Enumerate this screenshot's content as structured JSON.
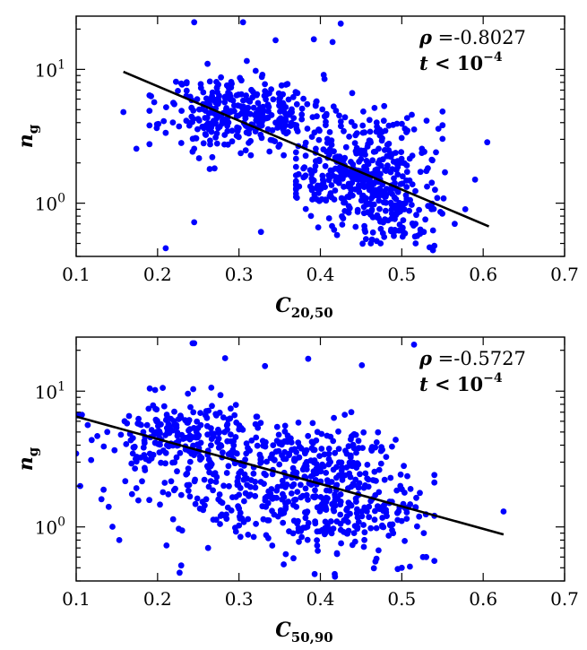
{
  "chart_data": [
    {
      "type": "scatter",
      "xlabel": {
        "main": "C",
        "sub": "20,50"
      },
      "ylabel": {
        "main": "n",
        "sub": "g"
      },
      "xlim": [
        0.1,
        0.7
      ],
      "ylim": [
        0.4,
        25
      ],
      "yscale": "log",
      "xticks": [
        "0.1",
        "0.2",
        "0.3",
        "0.4",
        "0.5",
        "0.6",
        "0.7"
      ],
      "yticks": [
        {
          "value": 1,
          "base": "10",
          "exp": "0"
        },
        {
          "value": 10,
          "base": "10",
          "exp": "1"
        }
      ],
      "annotation": {
        "rho_symbol": "ρ",
        "rho_text": " =-0.8027",
        "t_symbol": "t",
        "t_text": " < 10",
        "t_exp": "−4"
      },
      "marker_color": "#0000ff",
      "fit_color": "#000000",
      "fit_line": {
        "x": [
          0.158,
          0.607
        ],
        "y": [
          9.6,
          0.67
        ]
      },
      "clusters": [
        {
          "cx": 0.3,
          "cy": 4.8,
          "sx": 0.045,
          "sy": 0.14,
          "n": 320,
          "seed": 11,
          "xmin": 0.19,
          "xmax": 0.43
        },
        {
          "cx": 0.44,
          "cy": 1.5,
          "sx": 0.04,
          "sy": 0.14,
          "n": 300,
          "seed": 23,
          "xmin": 0.37,
          "xmax": 0.55
        },
        {
          "cx": 0.45,
          "cy": 3.4,
          "sx": 0.05,
          "sy": 0.12,
          "n": 90,
          "seed": 37,
          "xmin": 0.35,
          "xmax": 0.55
        },
        {
          "cx": 0.5,
          "cy": 0.8,
          "sx": 0.03,
          "sy": 0.1,
          "n": 90,
          "seed": 41,
          "xmin": 0.43,
          "xmax": 0.57
        }
      ],
      "outliers": [
        [
          0.245,
          22.5
        ],
        [
          0.305,
          22.5
        ],
        [
          0.345,
          16.5
        ],
        [
          0.392,
          16.8
        ],
        [
          0.415,
          16
        ],
        [
          0.425,
          22
        ],
        [
          0.158,
          4.8
        ],
        [
          0.174,
          2.55
        ],
        [
          0.21,
          0.46
        ],
        [
          0.245,
          0.72
        ],
        [
          0.327,
          0.61
        ],
        [
          0.245,
          2.55
        ],
        [
          0.264,
          1.8
        ],
        [
          0.542,
          2.4
        ],
        [
          0.565,
          0.7
        ],
        [
          0.59,
          1.5
        ],
        [
          0.605,
          2.85
        ],
        [
          0.545,
          3.6
        ],
        [
          0.578,
          0.9
        ],
        [
          0.517,
          0.5
        ],
        [
          0.54,
          0.48
        ],
        [
          0.474,
          0.5
        ],
        [
          0.456,
          0.54
        ],
        [
          0.531,
          1.33
        ],
        [
          0.553,
          1.7
        ],
        [
          0.462,
          0.5
        ],
        [
          0.489,
          0.61
        ],
        [
          0.527,
          0.61
        ],
        [
          0.225,
          6.9
        ],
        [
          0.192,
          6.3
        ]
      ]
    },
    {
      "type": "scatter",
      "xlabel": {
        "main": "C",
        "sub": "50,90"
      },
      "ylabel": {
        "main": "n",
        "sub": "g"
      },
      "xlim": [
        0.1,
        0.7
      ],
      "ylim": [
        0.4,
        25
      ],
      "yscale": "log",
      "xticks": [
        "0.1",
        "0.2",
        "0.3",
        "0.4",
        "0.5",
        "0.6",
        "0.7"
      ],
      "yticks": [
        {
          "value": 1,
          "base": "10",
          "exp": "0"
        },
        {
          "value": 10,
          "base": "10",
          "exp": "1"
        }
      ],
      "annotation": {
        "rho_symbol": "ρ",
        "rho_text": " =-0.5727",
        "t_symbol": "t",
        "t_text": " < 10",
        "t_exp": "−4"
      },
      "marker_color": "#0000ff",
      "fit_color": "#000000",
      "fit_line": {
        "x": [
          0.1,
          0.625
        ],
        "y": [
          6.5,
          0.88
        ]
      },
      "clusters": [
        {
          "cx": 0.24,
          "cy": 4.2,
          "sx": 0.055,
          "sy": 0.16,
          "n": 260,
          "seed": 53,
          "xmin": 0.1,
          "xmax": 0.42
        },
        {
          "cx": 0.42,
          "cy": 1.3,
          "sx": 0.05,
          "sy": 0.17,
          "n": 260,
          "seed": 67,
          "xmin": 0.3,
          "xmax": 0.54
        },
        {
          "cx": 0.4,
          "cy": 3.2,
          "sx": 0.055,
          "sy": 0.13,
          "n": 160,
          "seed": 71,
          "xmin": 0.3,
          "xmax": 0.53
        },
        {
          "cx": 0.3,
          "cy": 1.7,
          "sx": 0.06,
          "sy": 0.16,
          "n": 120,
          "seed": 83,
          "xmin": 0.14,
          "xmax": 0.45
        }
      ],
      "outliers": [
        [
          0.243,
          22.5
        ],
        [
          0.245,
          22.5
        ],
        [
          0.283,
          17.5
        ],
        [
          0.332,
          15.3
        ],
        [
          0.385,
          17.3
        ],
        [
          0.451,
          15.5
        ],
        [
          0.515,
          22
        ],
        [
          0.105,
          2.0
        ],
        [
          0.153,
          0.8
        ],
        [
          0.211,
          0.73
        ],
        [
          0.227,
          0.46
        ],
        [
          0.229,
          0.52
        ],
        [
          0.262,
          0.7
        ],
        [
          0.355,
          0.53
        ],
        [
          0.393,
          0.45
        ],
        [
          0.418,
          0.43
        ],
        [
          0.5,
          0.5
        ],
        [
          0.51,
          0.51
        ],
        [
          0.526,
          0.6
        ],
        [
          0.53,
          0.6
        ],
        [
          0.495,
          0.49
        ],
        [
          0.625,
          1.3
        ],
        [
          0.131,
          1.6
        ],
        [
          0.107,
          6.7
        ],
        [
          0.197,
          10.2
        ],
        [
          0.266,
          10.6
        ],
        [
          0.438,
          7.0
        ],
        [
          0.43,
          6.7
        ]
      ]
    }
  ]
}
